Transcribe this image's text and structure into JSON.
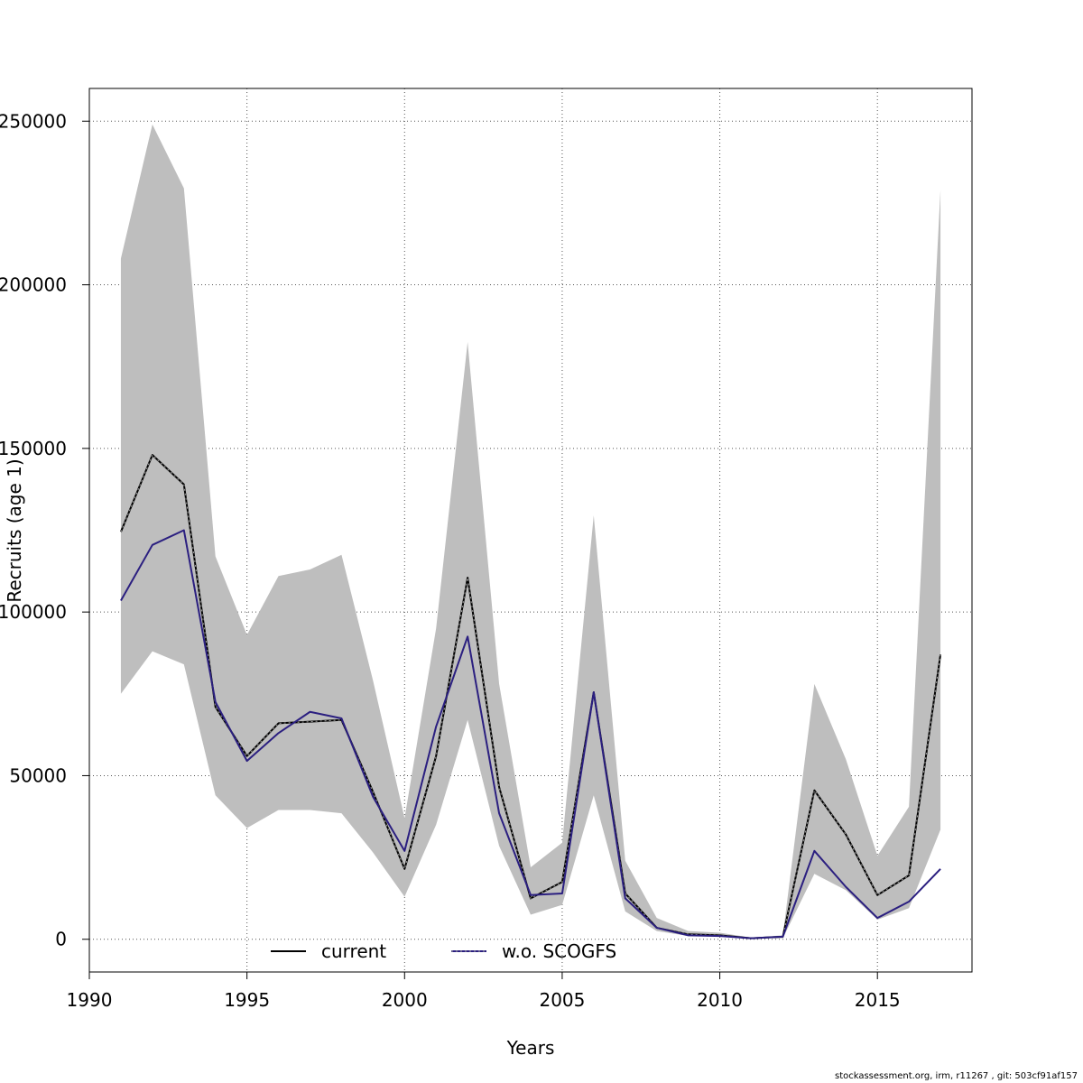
{
  "chart_data": {
    "type": "line",
    "xlabel": "Years",
    "ylabel": "Recruits (age 1)",
    "xlim": [
      1990,
      2018
    ],
    "ylim": [
      -10000,
      260000
    ],
    "x_ticks": [
      1990,
      1995,
      2000,
      2005,
      2010,
      2015
    ],
    "y_ticks": [
      0,
      50000,
      100000,
      150000,
      200000,
      250000
    ],
    "grid": true,
    "legend_position": "bottom-center",
    "x": [
      1991,
      1992,
      1993,
      1994,
      1995,
      1996,
      1997,
      1998,
      1999,
      2000,
      2001,
      2002,
      2003,
      2004,
      2005,
      2006,
      2007,
      2008,
      2009,
      2010,
      2011,
      2012,
      2013,
      2014,
      2015,
      2016,
      2017
    ],
    "band": {
      "color": "#bebebe",
      "lower": [
        75000,
        88000,
        84000,
        44000,
        34000,
        39500,
        39500,
        38500,
        26500,
        13000,
        35000,
        67000,
        28500,
        7500,
        10500,
        44000,
        8500,
        2500,
        1000,
        800,
        300,
        300,
        20000,
        15000,
        6000,
        9500,
        33500
      ],
      "upper": [
        208000,
        249000,
        229500,
        117000,
        93000,
        111000,
        113000,
        117500,
        79000,
        37000,
        95000,
        182500,
        78000,
        22000,
        29500,
        129500,
        24000,
        6500,
        2500,
        2000,
        500,
        1200,
        78000,
        55000,
        25500,
        40500,
        229000
      ]
    },
    "series": [
      {
        "name": "current",
        "color": "#000000",
        "values": [
          124500,
          148000,
          139000,
          71000,
          56000,
          66000,
          66500,
          67000,
          45000,
          21500,
          56000,
          110500,
          46500,
          12500,
          17500,
          75500,
          14000,
          3500,
          1500,
          1200,
          300,
          800,
          45500,
          32000,
          13500,
          19500,
          87000
        ]
      },
      {
        "name": "w.o. SCOGFS",
        "color": "#2b1f80",
        "values": [
          103500,
          120500,
          125000,
          72500,
          54500,
          63000,
          69500,
          67500,
          43500,
          27000,
          65000,
          92500,
          38500,
          13500,
          14000,
          75500,
          12500,
          3500,
          1200,
          1000,
          300,
          800,
          27000,
          16000,
          6500,
          11500,
          21500
        ]
      }
    ]
  },
  "footer_text": "stockassessment.org, irm, r11267 , git: 503cf91af157"
}
